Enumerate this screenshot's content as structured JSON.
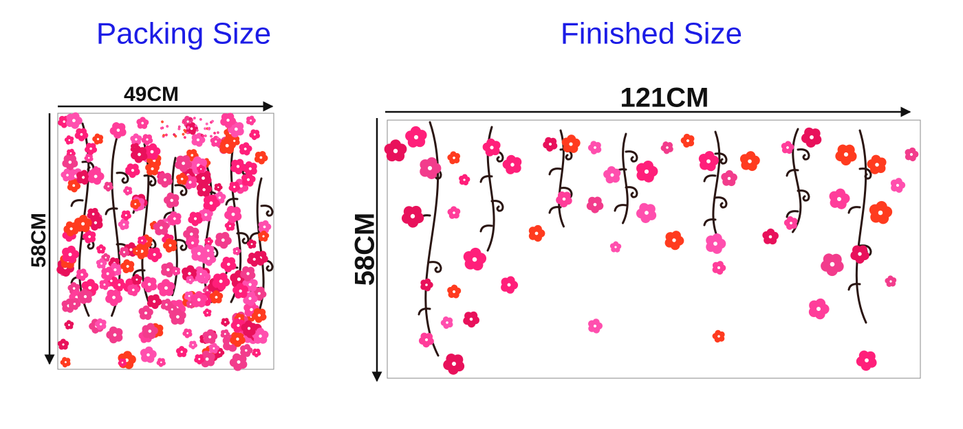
{
  "packing": {
    "title": "Packing Size",
    "width": "49CM",
    "height": "58CM"
  },
  "finished": {
    "title": "Finished Size",
    "width": "121CM",
    "height": "58CM"
  }
}
